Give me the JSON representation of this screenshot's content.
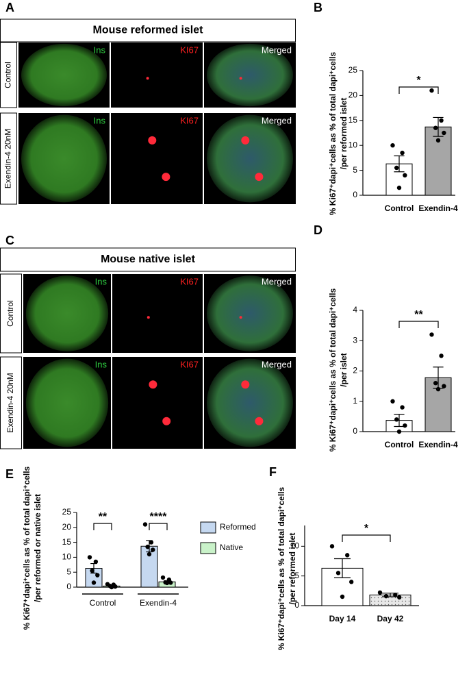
{
  "panel_letters": [
    "A",
    "B",
    "C",
    "D",
    "E",
    "F"
  ],
  "image_panels": [
    {
      "title": "Mouse reformed islet",
      "rows": [
        {
          "condition": "Control",
          "channels": [
            "Ins",
            "KI67",
            "Merged"
          ]
        },
        {
          "condition": "Exendin-4 20nM",
          "channels": [
            "Ins",
            "KI67",
            "Merged"
          ]
        }
      ]
    },
    {
      "title": "Mouse native islet",
      "rows": [
        {
          "condition": "Control",
          "channels": [
            "Ins",
            "KI67",
            "Merged"
          ]
        },
        {
          "condition": "Exendin-4 20nM",
          "channels": [
            "Ins",
            "KI67",
            "Merged"
          ]
        }
      ]
    }
  ],
  "chart_data": [
    {
      "type": "bar",
      "y_label": [
        "% Ki67⁺dapi⁺cells as % of total dapi⁺cells",
        "/per reformed islet"
      ],
      "categories": [
        "Control",
        "Exendin-4"
      ],
      "values": [
        6.3,
        13.7
      ],
      "errors": [
        1.6,
        1.9
      ],
      "colors": [
        "#ffffff",
        "#a6a6a6"
      ],
      "points": [
        [
          10,
          8.5,
          5.5,
          4,
          1.5
        ],
        [
          21,
          15,
          13.5,
          12.5,
          11
        ]
      ],
      "ylim": [
        0,
        25
      ],
      "yticks": [
        0,
        5,
        10,
        15,
        20,
        25
      ],
      "significance": "*"
    },
    {
      "type": "bar",
      "y_label": [
        "% Ki67⁺dapi⁺cells as % of total dapi⁺cells",
        "/per islet"
      ],
      "categories": [
        "Control",
        "Exendin-4"
      ],
      "values": [
        0.37,
        1.78
      ],
      "errors": [
        0.2,
        0.35
      ],
      "colors": [
        "#ffffff",
        "#a6a6a6"
      ],
      "points": [
        [
          1.0,
          0.8,
          0.4,
          0.2,
          0.0
        ],
        [
          3.2,
          2.5,
          1.6,
          1.5,
          1.4
        ]
      ],
      "ylim": [
        0,
        4
      ],
      "yticks": [
        0,
        1,
        2,
        3,
        4
      ],
      "significance": "**"
    },
    {
      "type": "grouped_bar",
      "y_label": [
        "% Ki67⁺dapi⁺cells as % of total dapi⁺cells",
        "/per reformed or native islet"
      ],
      "categories": [
        "Control",
        "Exendin-4"
      ],
      "series": [
        {
          "name": "Reformed",
          "color": "#c5d8f0",
          "values": [
            6.3,
            13.7
          ],
          "errors": [
            1.6,
            1.9
          ],
          "points": [
            [
              10,
              8.5,
              5.5,
              4,
              1.5
            ],
            [
              21,
              15,
              13.5,
              12.5,
              11
            ]
          ]
        },
        {
          "name": "Native",
          "color": "#c9f2c9",
          "values": [
            0.37,
            1.78
          ],
          "errors": [
            0.2,
            0.35
          ],
          "points": [
            [
              1.0,
              0.8,
              0.4,
              0.2,
              0.0
            ],
            [
              3.2,
              2.5,
              1.6,
              1.5,
              1.4
            ]
          ]
        }
      ],
      "ylim": [
        0,
        25
      ],
      "yticks": [
        0,
        5,
        10,
        15,
        20,
        25
      ],
      "significance": [
        "**",
        "****"
      ]
    },
    {
      "type": "bar",
      "y_label": [
        "% Ki67⁺dapi⁺cells as % of total dapi⁺cells",
        "/per reformed islet"
      ],
      "categories": [
        "Day 14",
        "Day 42"
      ],
      "values": [
        6.3,
        1.8
      ],
      "errors": [
        1.6,
        0.3
      ],
      "colors": [
        "#ffffff",
        "#e8e8e8"
      ],
      "points": [
        [
          10,
          8.5,
          5.5,
          4,
          1.5
        ],
        [
          2.2,
          1.8,
          1.6,
          1.4
        ]
      ],
      "ylim": [
        0,
        13.5
      ],
      "yticks": [
        0,
        5,
        10
      ],
      "significance": "*"
    }
  ]
}
